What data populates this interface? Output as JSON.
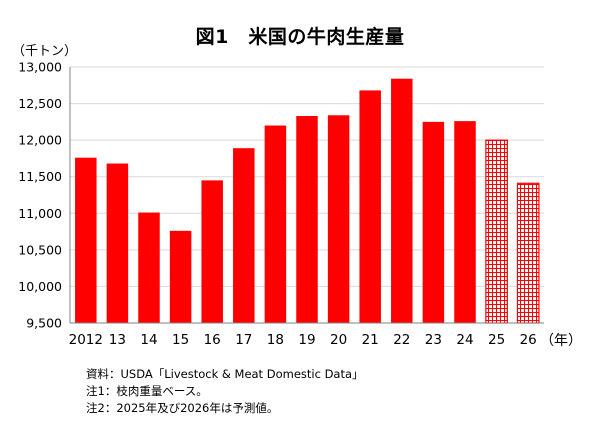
{
  "chart_data": {
    "type": "bar",
    "title": "図1　米国の牛肉生産量",
    "ylabel": "（千トン）",
    "xlabel": "（年）",
    "categories": [
      "2012",
      "13",
      "14",
      "15",
      "16",
      "17",
      "18",
      "19",
      "20",
      "21",
      "22",
      "23",
      "24",
      "25",
      "26"
    ],
    "values": [
      11760,
      11680,
      11010,
      10760,
      11450,
      11890,
      12200,
      12330,
      12340,
      12680,
      12840,
      12250,
      12260,
      12000,
      11410
    ],
    "forecast_categories": [
      "25",
      "26"
    ],
    "ylim": [
      9500,
      13000
    ],
    "yticks": [
      9500,
      10000,
      10500,
      11000,
      11500,
      12000,
      12500,
      13000
    ],
    "ytick_labels": [
      "9,500",
      "10,000",
      "10,500",
      "11,000",
      "11,500",
      "12,000",
      "12,500",
      "13,000"
    ],
    "grid": true,
    "colors": {
      "bar": "#ff0000",
      "forecast_fill": "#ffffff",
      "forecast_hatch": "#ff0000",
      "grid": "#d9d9d9",
      "axis": "#808080"
    }
  },
  "notes": [
    "資料：USDA「Livestock & Meat Domestic Data」",
    "注1：枝肉重量ベース。",
    "注2：2025年及び2026年は予測値。"
  ]
}
